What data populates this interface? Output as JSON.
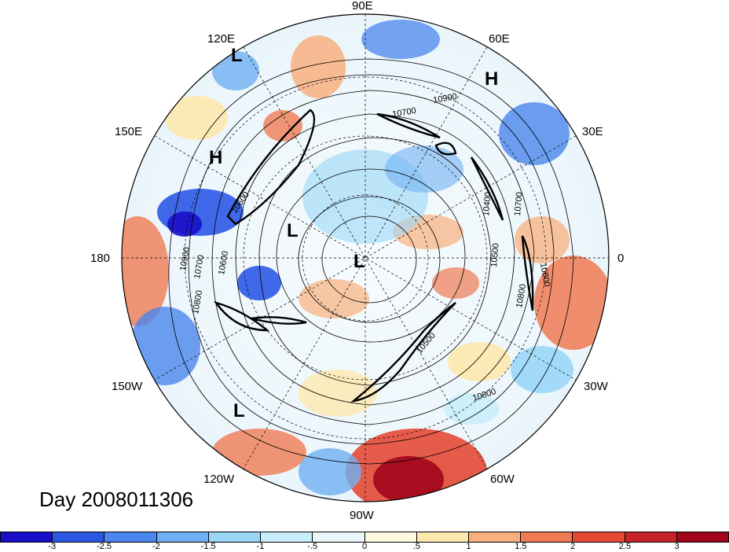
{
  "title": "Day 2008011306",
  "longitude_labels": [
    "90E",
    "60E",
    "30E",
    "0",
    "30W",
    "60W",
    "90W",
    "120W",
    "150W",
    "180",
    "150E",
    "120E"
  ],
  "pressure_centers": [
    "L",
    "H",
    "H",
    "L",
    "L",
    "L"
  ],
  "contour_labels": [
    "10900",
    "10700",
    "10600",
    "10400",
    "10700",
    "10500",
    "10800",
    "10800",
    "10900",
    "10800",
    "10700",
    "10600",
    "10500",
    "10800"
  ],
  "colorbar": {
    "tick_labels": [
      "-3",
      "-2.5",
      "-2",
      "-1.5",
      "-1",
      "-.5",
      "0",
      ".5",
      "1",
      "1.5",
      "2",
      "2.5",
      "3"
    ],
    "colors": [
      "#1a0fc8",
      "#2b59e6",
      "#4a86ec",
      "#6fb0f2",
      "#9ad7f7",
      "#c9eefb",
      "#eaf8fd",
      "#fffbe0",
      "#fde8ae",
      "#f8b07f",
      "#f07a54",
      "#e44a36",
      "#c82229",
      "#a1061c"
    ]
  }
}
